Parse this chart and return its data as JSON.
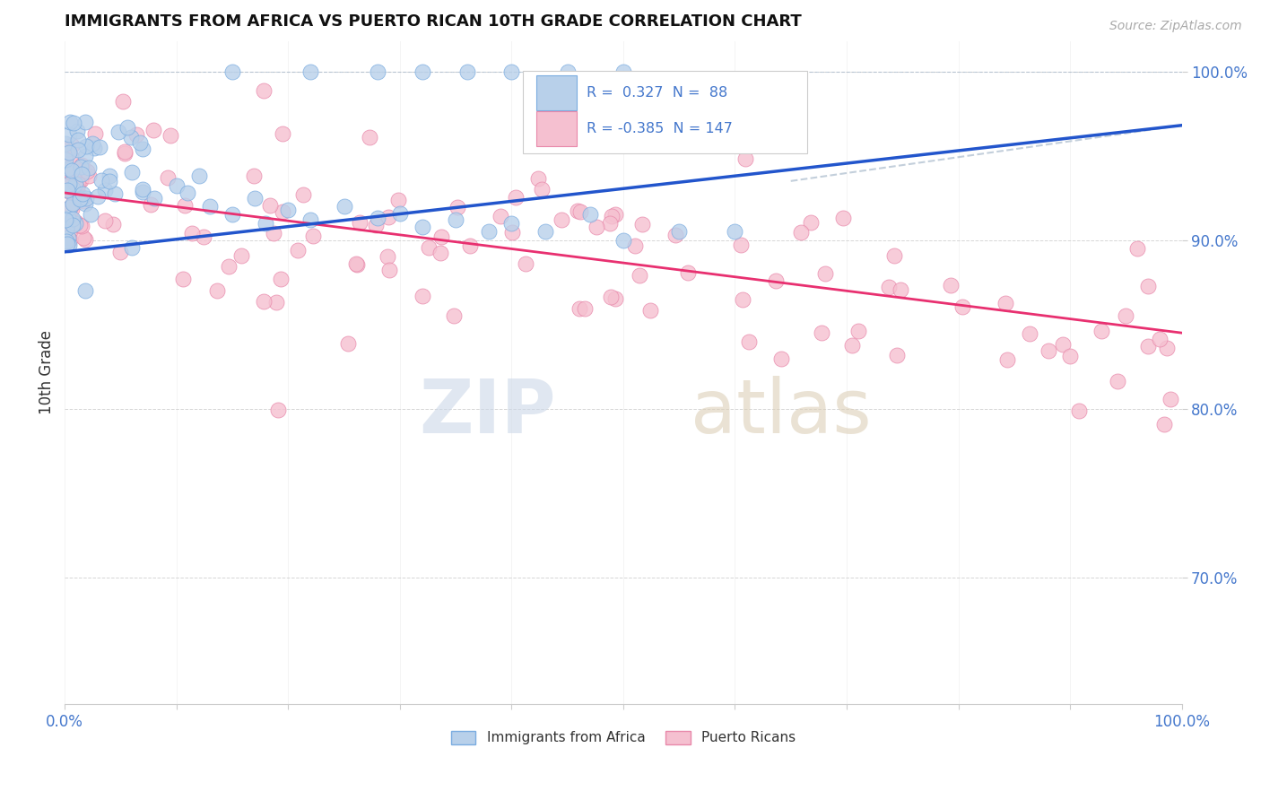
{
  "title": "IMMIGRANTS FROM AFRICA VS PUERTO RICAN 10TH GRADE CORRELATION CHART",
  "source": "Source: ZipAtlas.com",
  "ylabel": "10th Grade",
  "x_min": 0.0,
  "x_max": 1.0,
  "y_min": 0.625,
  "y_max": 1.018,
  "y_ticks": [
    0.7,
    0.8,
    0.9,
    1.0
  ],
  "y_tick_labels": [
    "70.0%",
    "80.0%",
    "90.0%",
    "100.0%"
  ],
  "x_tick_labels": [
    "0.0%",
    "",
    "",
    "",
    "",
    "",
    "",
    "",
    "",
    "",
    "100.0%"
  ],
  "blue_fill": "#b8d0ea",
  "blue_edge": "#7aace0",
  "pink_fill": "#f5c0d0",
  "pink_edge": "#e888aa",
  "blue_line_color": "#2255cc",
  "pink_line_color": "#e83070",
  "blue_line_dash": "#aabbdd",
  "r_blue": 0.327,
  "n_blue": 88,
  "r_pink": -0.385,
  "n_pink": 147,
  "legend_label_blue": "Immigrants from Africa",
  "legend_label_pink": "Puerto Ricans",
  "axis_color": "#4477cc",
  "title_color": "#111111"
}
